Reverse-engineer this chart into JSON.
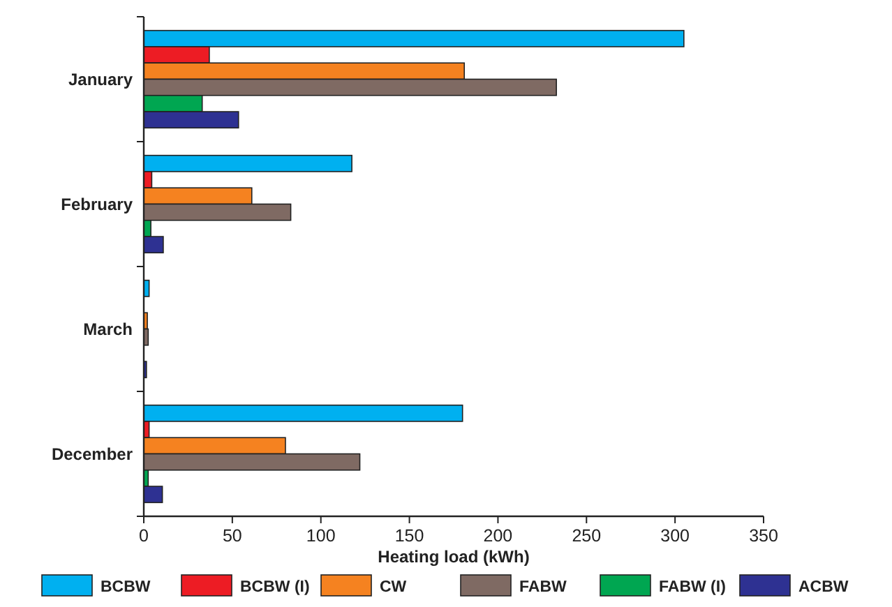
{
  "chart_data": {
    "type": "bar",
    "orientation": "horizontal",
    "xlabel": "Heating load (kWh)",
    "categories": [
      "January",
      "February",
      "March",
      "December"
    ],
    "series": [
      {
        "name": "BCBW",
        "color": "#00b0f0",
        "values": [
          305,
          117.5,
          3,
          180
        ]
      },
      {
        "name": "BCBW (I)",
        "color": "#ed1c24",
        "values": [
          37,
          4.5,
          0,
          3
        ]
      },
      {
        "name": "CW",
        "color": "#f58220",
        "values": [
          181,
          61,
          2,
          80
        ]
      },
      {
        "name": "FABW",
        "color": "#7f6a63",
        "values": [
          233,
          83,
          2.5,
          122
        ]
      },
      {
        "name": "FABW (I)",
        "color": "#00a651",
        "values": [
          33,
          4,
          0,
          2.5
        ]
      },
      {
        "name": "ACBW",
        "color": "#2e3192",
        "values": [
          53.5,
          11,
          1.5,
          10.5
        ]
      }
    ],
    "xlim": [
      0,
      350
    ],
    "xticks": [
      0,
      50,
      100,
      150,
      200,
      250,
      300,
      350
    ],
    "grid": false,
    "legend": "bottom"
  }
}
